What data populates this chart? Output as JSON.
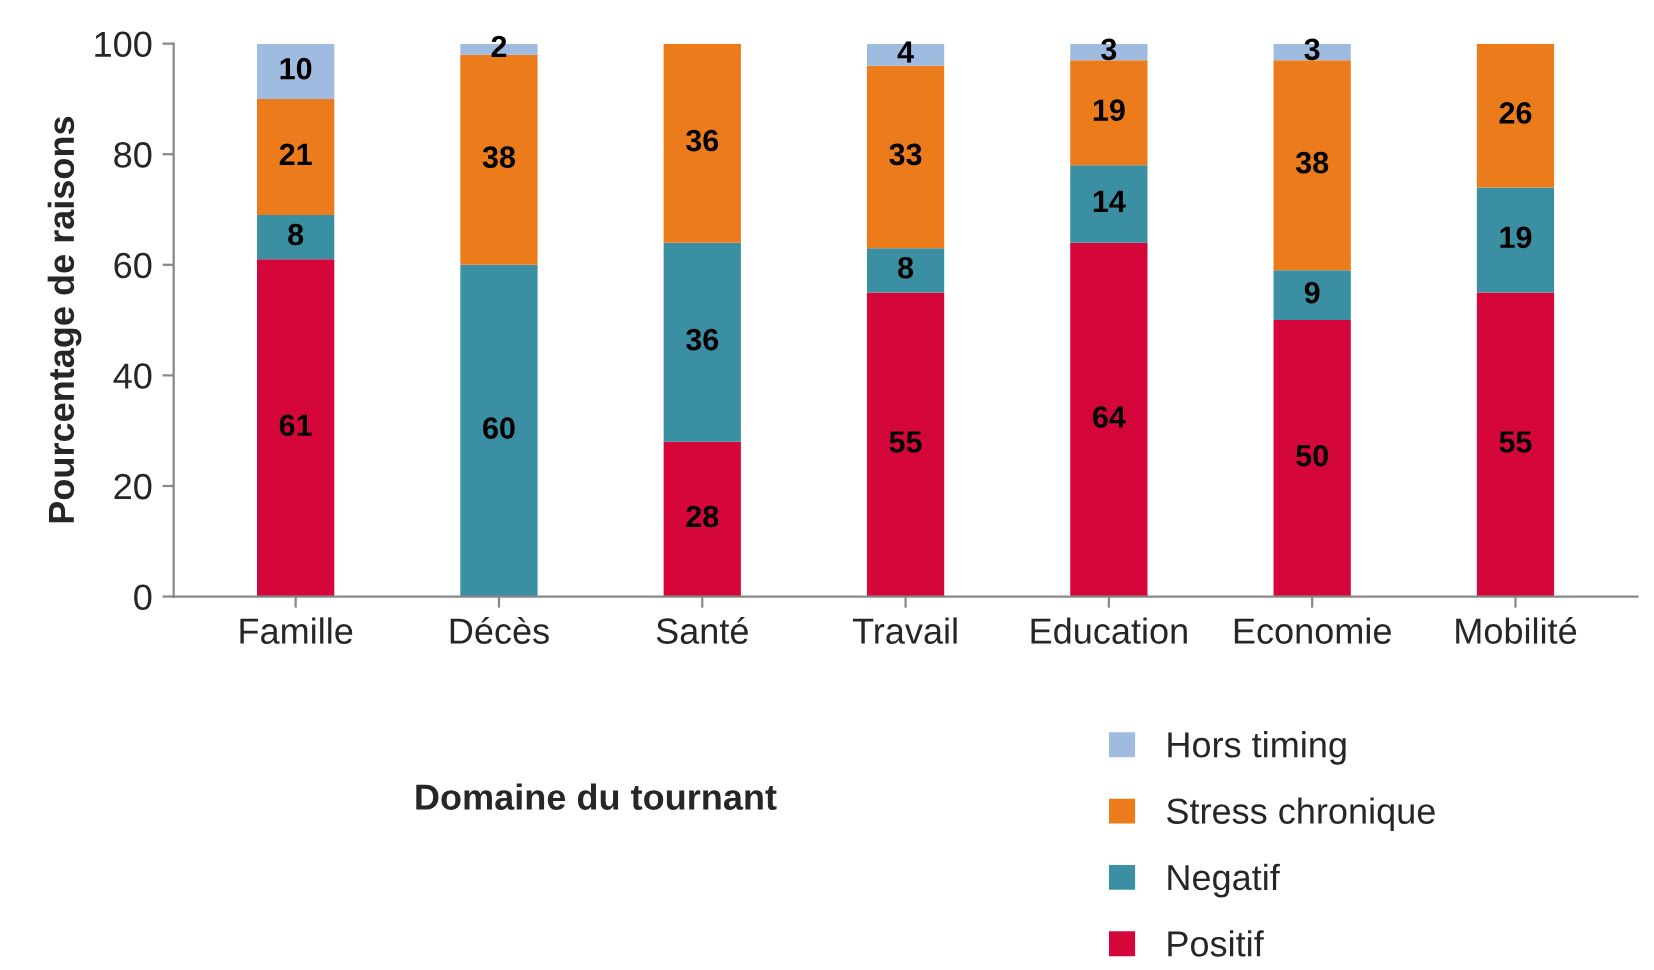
{
  "chart_data": {
    "type": "bar",
    "stacked": true,
    "xlabel": "Domaine du tournant",
    "ylabel": "Pourcentage de raisons",
    "categories": [
      "Famille",
      "Décès",
      "Santé",
      "Travail",
      "Education",
      "Economie",
      "Mobilité"
    ],
    "series": [
      {
        "name": "Positif",
        "color": "#d5073a",
        "values": [
          61,
          0,
          28,
          55,
          64,
          50,
          55
        ],
        "value_labels": [
          "61",
          null,
          "28",
          "55",
          "64",
          "50",
          "55"
        ]
      },
      {
        "name": "Negatif",
        "color": "#3a8fa2",
        "values": [
          8,
          60,
          36,
          8,
          14,
          9,
          19
        ],
        "value_labels": [
          "8",
          "60",
          "36",
          "8",
          "14",
          "9",
          "19"
        ]
      },
      {
        "name": "Stress chronique",
        "color": "#ec7b1c",
        "values": [
          21,
          38,
          36,
          33,
          19,
          38,
          26
        ],
        "value_labels": [
          "21",
          "38",
          "36",
          "33",
          "19",
          "38",
          "26"
        ]
      },
      {
        "name": "Hors timing",
        "color": "#9fbbe0",
        "values": [
          10,
          2,
          0,
          4,
          3,
          3,
          0
        ],
        "value_labels": [
          "10",
          "2",
          null,
          "4",
          "3",
          "3",
          null
        ]
      }
    ],
    "ylim": [
      0,
      100
    ],
    "yticks": [
      0,
      20,
      40,
      60,
      80,
      100
    ],
    "grid": false,
    "legend": "bottom right"
  }
}
